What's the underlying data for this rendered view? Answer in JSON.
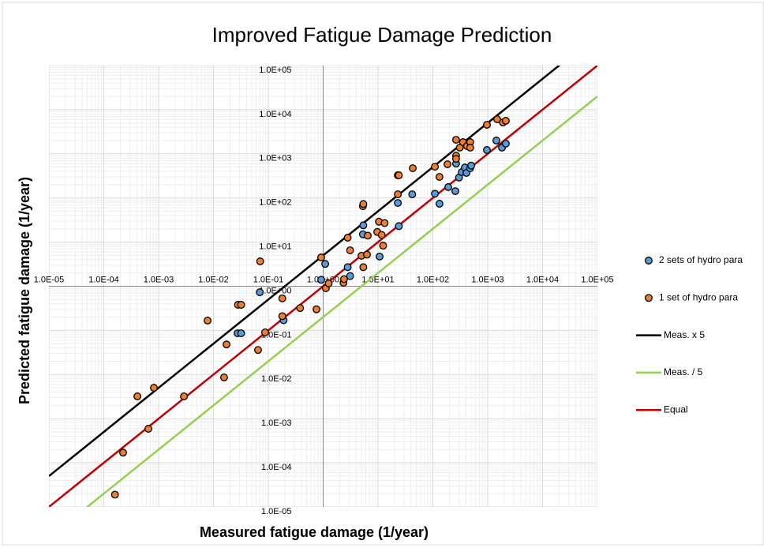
{
  "chart_data": {
    "type": "scatter",
    "title": "Improved Fatigue Damage Prediction",
    "x_label": "Measured fatigue damage (1/year)",
    "y_label": "Predicted fatigue damage (1/year)",
    "log_x": true,
    "log_y": true,
    "grid": true,
    "legend": "right",
    "axes_cross": [
      1,
      1
    ],
    "xlim": [
      1e-05,
      100000
    ],
    "ylim": [
      1e-05,
      100000
    ],
    "xticks": [
      {
        "value": 1e-05,
        "label": "1.0E-05"
      },
      {
        "value": 0.0001,
        "label": "1.0E-04"
      },
      {
        "value": 0.001,
        "label": "1.0E-03"
      },
      {
        "value": 0.01,
        "label": "1.0E-02"
      },
      {
        "value": 0.1,
        "label": "1.0E-01"
      },
      {
        "value": 1,
        "label": "1.0E+00"
      },
      {
        "value": 10,
        "label": "1.0E+01"
      },
      {
        "value": 100,
        "label": "1.0E+02"
      },
      {
        "value": 1000,
        "label": "1.0E+03"
      },
      {
        "value": 10000,
        "label": "1.0E+04"
      },
      {
        "value": 100000,
        "label": "1.0E+05"
      }
    ],
    "yticks": [
      {
        "value": 1e-05,
        "label": "1.0E-05"
      },
      {
        "value": 0.0001,
        "label": "1.0E-04"
      },
      {
        "value": 0.001,
        "label": "1.0E-03"
      },
      {
        "value": 0.01,
        "label": "1.0E-02"
      },
      {
        "value": 0.1,
        "label": "1.0E-01"
      },
      {
        "value": 1,
        "label": "1.0E+00"
      },
      {
        "value": 10,
        "label": "1.0E+01"
      },
      {
        "value": 100,
        "label": "1.0E+02"
      },
      {
        "value": 1000,
        "label": "1.0E+03"
      },
      {
        "value": 10000,
        "label": "1.0E+04"
      },
      {
        "value": 100000,
        "label": "1.0E+05"
      }
    ],
    "series": [
      {
        "name": "2 sets of hydro para",
        "kind": "markers",
        "color": "#5b9bd5",
        "x": [
          0.07,
          0.0275,
          0.032,
          0.19,
          0.92,
          1.09,
          2.8,
          3.1,
          5.3,
          5.4,
          10.7,
          23,
          24,
          42,
          109,
          132,
          191,
          257,
          265,
          300,
          337,
          383,
          410,
          479,
          500,
          968,
          1440,
          1820,
          2140
        ],
        "values": [
          0.73,
          0.086,
          0.086,
          0.17,
          1.4,
          3.2,
          2.7,
          1.7,
          15,
          24,
          4.7,
          77,
          23,
          121,
          125,
          74,
          176,
          143,
          600,
          290,
          385,
          490,
          370,
          470,
          540,
          1220,
          2000,
          1380,
          1700
        ]
      },
      {
        "name": "1 set of hydro para",
        "kind": "markers",
        "color": "#ed7d31",
        "x": [
          0.00016,
          0.000225,
          0.00041,
          0.00065,
          0.00082,
          0.0029,
          0.0078,
          0.0156,
          0.0173,
          0.028,
          0.032,
          0.065,
          0.071,
          0.0875,
          0.18,
          0.18,
          0.38,
          0.755,
          0.92,
          1.12,
          1.26,
          2.35,
          2.4,
          2.8,
          3.1,
          5.0,
          5.4,
          5.3,
          5.4,
          6.3,
          6.5,
          9.7,
          10.4,
          11.7,
          13.2,
          12.4,
          23,
          24,
          23,
          43,
          109,
          132,
          185,
          265,
          265,
          265,
          310,
          355,
          420,
          480,
          480,
          968,
          1490,
          1900,
          2140
        ],
        "values": [
          1.9e-05,
          0.00017,
          0.0032,
          0.00059,
          0.005,
          0.0032,
          0.167,
          0.0086,
          0.048,
          0.38,
          0.38,
          0.036,
          3.66,
          0.09,
          0.21,
          0.53,
          0.32,
          0.3,
          4.5,
          0.9,
          1.16,
          1.2,
          1.45,
          12.6,
          6.5,
          4.9,
          2.7,
          65,
          73,
          5.2,
          14,
          17,
          29,
          14.5,
          27,
          8.3,
          326,
          326,
          121,
          472,
          510,
          300,
          580,
          2080,
          910,
          770,
          1380,
          1840,
          1500,
          1840,
          1380,
          4550,
          6060,
          5130,
          5600
        ]
      },
      {
        "name": "Meas. x 5",
        "kind": "line",
        "color": "#000000",
        "x": [
          1e-05,
          100000
        ],
        "values": [
          5e-05,
          500000
        ]
      },
      {
        "name": "Meas. / 5",
        "kind": "line",
        "color": "#92d050",
        "x": [
          1e-05,
          100000
        ],
        "values": [
          2e-06,
          20000
        ]
      },
      {
        "name": "Equal",
        "kind": "line",
        "color": "#c00000",
        "x": [
          1e-05,
          100000
        ],
        "values": [
          1e-05,
          100000
        ]
      }
    ]
  }
}
